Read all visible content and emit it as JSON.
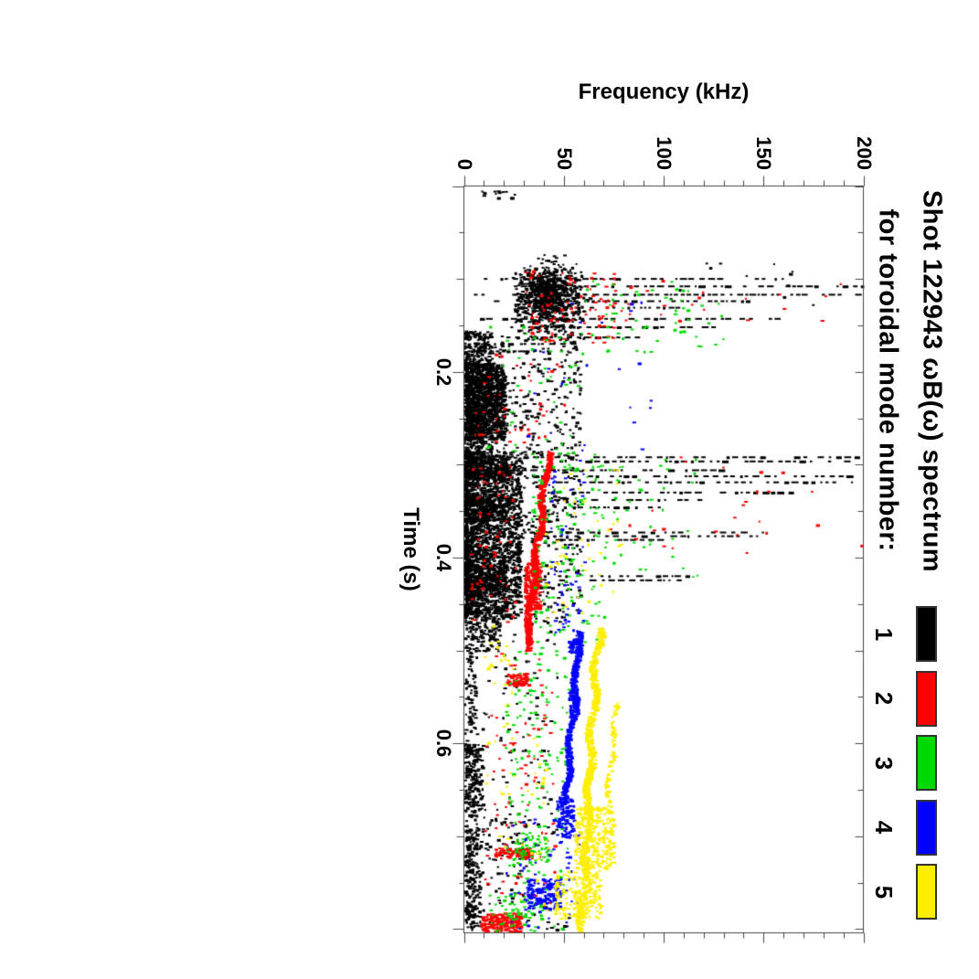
{
  "figure": {
    "background": "#ffffff"
  },
  "title": {
    "line1": "Shot 122943 ωB(ω) spectrum",
    "line2": "for toroidal mode number:"
  },
  "axes": {
    "freq": {
      "title": "Frequency (kHz)",
      "tick_labels": [
        "0",
        "50",
        "100",
        "150",
        "200"
      ],
      "tick_values": [
        0,
        50,
        100,
        150,
        200
      ],
      "minor_step": 10,
      "range": [
        0,
        200
      ]
    },
    "time": {
      "title": "Time (s)",
      "tick_labels": [
        "0.2",
        "0.4",
        "0.6"
      ],
      "tick_values": [
        0.2,
        0.4,
        0.6
      ],
      "minor_step": 0.05,
      "range": [
        0,
        0.804
      ]
    }
  },
  "legend": {
    "items": [
      {
        "label": "1",
        "color": "#000000"
      },
      {
        "label": "2",
        "color": "#ff0000"
      },
      {
        "label": "3",
        "color": "#00d900"
      },
      {
        "label": "4",
        "color": "#0000ff"
      },
      {
        "label": "5",
        "color": "#fdee00"
      }
    ]
  },
  "chart_data": {
    "type": "scatter",
    "title": "Shot 122943 ωB(ω) spectrum for toroidal mode number:",
    "xlabel": "Time (s)",
    "ylabel": "Frequency (kHz)",
    "xlim": [
      0,
      0.804
    ],
    "ylim": [
      0,
      200
    ],
    "orientation": "rotated_90_cw",
    "grid": false,
    "legend_position": "right",
    "series": [
      {
        "name": "n=1",
        "color": "#000000",
        "features": [
          {
            "kind": "cluster",
            "t": [
              0.004,
              0.012
            ],
            "f": [
              8,
              25
            ],
            "n": 14
          },
          {
            "kind": "gauss",
            "t0": 0.115,
            "f0": 42,
            "st": 0.016,
            "sf": 7,
            "n": 650
          },
          {
            "kind": "cluster",
            "t": [
              0.09,
              0.165
            ],
            "f": [
              25,
              60
            ],
            "n": 250
          },
          {
            "kind": "cluster",
            "t": [
              0.16,
              0.29
            ],
            "f": [
              5,
              58
            ],
            "n": 260
          },
          {
            "kind": "cluster",
            "t": [
              0.08,
              0.13
            ],
            "f": [
              100,
              180
            ],
            "n": 12
          },
          {
            "kind": "streak",
            "t": 0.1,
            "f": [
              10,
              160
            ]
          },
          {
            "kind": "streak",
            "t": 0.108,
            "f": [
              25,
              200
            ]
          },
          {
            "kind": "streak",
            "t": 0.117,
            "f": [
              5,
              200
            ]
          },
          {
            "kind": "streak",
            "t": 0.124,
            "f": [
              15,
              145
            ]
          },
          {
            "kind": "streak",
            "t": 0.131,
            "f": [
              40,
              110
            ]
          },
          {
            "kind": "streak",
            "t": 0.143,
            "f": [
              8,
              170
            ]
          },
          {
            "kind": "streak",
            "t": 0.152,
            "f": [
              20,
              130
            ]
          },
          {
            "kind": "streak",
            "t": 0.163,
            "f": [
              5,
              90
            ]
          },
          {
            "kind": "streak",
            "t": 0.17,
            "f": [
              5,
              60
            ]
          },
          {
            "kind": "streak",
            "t": 0.178,
            "f": [
              5,
              45
            ]
          },
          {
            "kind": "band",
            "t": [
              0.155,
              0.29
            ],
            "f": [
              0,
              14
            ],
            "n": 650,
            "bias": 1.4
          },
          {
            "kind": "cluster",
            "t": [
              0.19,
              0.272
            ],
            "f": [
              0,
              20
            ],
            "n": 900
          },
          {
            "kind": "band",
            "t": [
              0.285,
              0.465
            ],
            "f": [
              0,
              28
            ],
            "n": 2300,
            "bias": 1.6
          },
          {
            "kind": "cluster",
            "t": [
              0.29,
              0.315
            ],
            "f": [
              0,
              22
            ],
            "n": 260
          },
          {
            "kind": "cluster",
            "t": [
              0.33,
              0.36
            ],
            "f": [
              0,
              22
            ],
            "n": 240
          },
          {
            "kind": "cluster",
            "t": [
              0.4,
              0.44
            ],
            "f": [
              0,
              20
            ],
            "n": 240
          },
          {
            "kind": "cluster",
            "t": [
              0.285,
              0.47
            ],
            "f": [
              28,
              58
            ],
            "n": 230
          },
          {
            "kind": "streak",
            "t": 0.292,
            "f": [
              15,
              200
            ]
          },
          {
            "kind": "streak",
            "t": 0.2965,
            "f": [
              55,
              200
            ]
          },
          {
            "kind": "streak",
            "t": 0.306,
            "f": [
              20,
              130
            ]
          },
          {
            "kind": "streak",
            "t": 0.3125,
            "f": [
              30,
              200
            ]
          },
          {
            "kind": "streak",
            "t": 0.319,
            "f": [
              35,
              195
            ]
          },
          {
            "kind": "streak",
            "t": 0.33,
            "f": [
              40,
              165
            ]
          },
          {
            "kind": "streak",
            "t": 0.338,
            "f": [
              45,
              120
            ]
          },
          {
            "kind": "streak",
            "t": 0.346,
            "f": [
              50,
              100
            ]
          },
          {
            "kind": "streak",
            "t": 0.373,
            "f": [
              30,
              150
            ]
          },
          {
            "kind": "streak",
            "t": 0.377,
            "f": [
              35,
              148
            ]
          },
          {
            "kind": "streak",
            "t": 0.381,
            "f": [
              40,
              100
            ]
          },
          {
            "kind": "streak",
            "t": 0.42,
            "f": [
              40,
              120
            ]
          },
          {
            "kind": "streak",
            "t": 0.4245,
            "f": [
              45,
              115
            ]
          },
          {
            "kind": "cluster",
            "t": [
              0.465,
              0.5
            ],
            "f": [
              0,
              18
            ],
            "n": 130
          },
          {
            "kind": "band",
            "t": [
              0.5,
              0.8
            ],
            "f": [
              0,
              6
            ],
            "n": 260,
            "bias": 1.2
          },
          {
            "kind": "cluster",
            "t": [
              0.6,
              0.675
            ],
            "f": [
              0,
              9
            ],
            "n": 130
          },
          {
            "kind": "cluster",
            "t": [
              0.69,
              0.8
            ],
            "f": [
              0,
              8
            ],
            "n": 150
          },
          {
            "kind": "cluster",
            "t": [
              0.46,
              0.8
            ],
            "f": [
              5,
              48
            ],
            "n": 130
          },
          {
            "kind": "cluster",
            "t": [
              0.67,
              0.745
            ],
            "f": [
              8,
              32
            ],
            "n": 55
          },
          {
            "kind": "cluster",
            "t": [
              0.785,
              0.8
            ],
            "f": [
              40,
              52
            ],
            "n": 8
          }
        ]
      },
      {
        "name": "n=2",
        "color": "#ff0000",
        "features": [
          {
            "kind": "cluster",
            "t": [
              0.09,
              0.17
            ],
            "f": [
              30,
              75
            ],
            "n": 90
          },
          {
            "kind": "cluster",
            "t": [
              0.1,
              0.15
            ],
            "f": [
              75,
              190
            ],
            "n": 22
          },
          {
            "kind": "track",
            "pts": [
              [
                0.285,
                42
              ],
              [
                0.31,
                40.5
              ],
              [
                0.34,
                38.5
              ],
              [
                0.37,
                37
              ],
              [
                0.4,
                35.5
              ],
              [
                0.43,
                34
              ],
              [
                0.46,
                32.5
              ],
              [
                0.5,
                30.5
              ]
            ],
            "w": 2.5,
            "n": 750
          },
          {
            "kind": "cluster",
            "t": [
              0.405,
              0.455
            ],
            "f": [
              30,
              38
            ],
            "n": 160
          },
          {
            "kind": "cluster",
            "t": [
              0.524,
              0.537
            ],
            "f": [
              21,
              31
            ],
            "n": 70
          },
          {
            "kind": "cluster",
            "t": [
              0.3,
              0.47
            ],
            "f": [
              3,
              28
            ],
            "n": 60
          },
          {
            "kind": "cluster",
            "t": [
              0.5,
              0.79
            ],
            "f": [
              10,
              45
            ],
            "n": 90
          },
          {
            "kind": "cluster",
            "t": [
              0.28,
              0.4
            ],
            "f": [
              60,
              200
            ],
            "n": 26
          },
          {
            "kind": "cluster",
            "t": [
              0.712,
              0.723
            ],
            "f": [
              15,
              34
            ],
            "n": 85
          },
          {
            "kind": "cluster",
            "t": [
              0.782,
              0.802
            ],
            "f": [
              8,
              28
            ],
            "n": 210
          },
          {
            "kind": "cluster",
            "t": [
              0.16,
              0.28
            ],
            "f": [
              5,
              50
            ],
            "n": 45
          }
        ]
      },
      {
        "name": "n=3",
        "color": "#00d900",
        "features": [
          {
            "kind": "cluster",
            "t": [
              0.095,
              0.185
            ],
            "f": [
              55,
              130
            ],
            "n": 60
          },
          {
            "kind": "cluster",
            "t": [
              0.15,
              0.285
            ],
            "f": [
              10,
              60
            ],
            "n": 40
          },
          {
            "kind": "cluster",
            "t": [
              0.285,
              0.5
            ],
            "f": [
              33,
              70
            ],
            "n": 140
          },
          {
            "kind": "cluster",
            "t": [
              0.29,
              0.42
            ],
            "f": [
              70,
              120
            ],
            "n": 40
          },
          {
            "kind": "cluster",
            "t": [
              0.5,
              0.8
            ],
            "f": [
              20,
              52
            ],
            "n": 160
          },
          {
            "kind": "cluster",
            "t": [
              0.695,
              0.728
            ],
            "f": [
              24,
              42
            ],
            "n": 60
          },
          {
            "kind": "cluster",
            "t": [
              0.76,
              0.802
            ],
            "f": [
              10,
              38
            ],
            "n": 45
          }
        ]
      },
      {
        "name": "n=4",
        "color": "#0000ff",
        "features": [
          {
            "kind": "cluster",
            "t": [
              0.12,
              0.3
            ],
            "f": [
              30,
              95
            ],
            "n": 25
          },
          {
            "kind": "cluster",
            "t": [
              0.3,
              0.48
            ],
            "f": [
              42,
              60
            ],
            "n": 60
          },
          {
            "kind": "track",
            "pts": [
              [
                0.478,
                57
              ],
              [
                0.51,
                56
              ],
              [
                0.545,
                55
              ],
              [
                0.575,
                53.5
              ],
              [
                0.61,
                52
              ],
              [
                0.645,
                50.8
              ],
              [
                0.665,
                50
              ]
            ],
            "w": 2.5,
            "n": 500
          },
          {
            "kind": "cluster",
            "t": [
              0.487,
              0.503
            ],
            "f": [
              52,
              58
            ],
            "n": 60
          },
          {
            "kind": "cluster",
            "t": [
              0.54,
              0.572
            ],
            "f": [
              52,
              57
            ],
            "n": 70
          },
          {
            "kind": "cluster",
            "t": [
              0.657,
              0.7
            ],
            "f": [
              46,
              55
            ],
            "n": 110
          },
          {
            "kind": "cluster",
            "t": [
              0.745,
              0.778
            ],
            "f": [
              31,
              48
            ],
            "n": 170
          },
          {
            "kind": "cluster",
            "t": [
              0.68,
              0.8
            ],
            "f": [
              20,
              58
            ],
            "n": 60
          }
        ]
      },
      {
        "name": "n=5",
        "color": "#fdee00",
        "features": [
          {
            "kind": "track",
            "pts": [
              [
                0.475,
                67
              ],
              [
                0.51,
                65.5
              ],
              [
                0.55,
                64.5
              ],
              [
                0.59,
                63
              ],
              [
                0.63,
                62
              ],
              [
                0.67,
                61.5
              ],
              [
                0.71,
                61
              ],
              [
                0.75,
                60
              ],
              [
                0.78,
                59
              ],
              [
                0.802,
                57.5
              ]
            ],
            "w": 3,
            "n": 850
          },
          {
            "kind": "track",
            "pts": [
              [
                0.555,
                76
              ],
              [
                0.6,
                74
              ],
              [
                0.645,
                72
              ],
              [
                0.675,
                71
              ]
            ],
            "w": 2,
            "n": 90
          },
          {
            "kind": "cluster",
            "t": [
              0.668,
              0.735
            ],
            "f": [
              55,
              75
            ],
            "n": 280
          },
          {
            "kind": "cluster",
            "t": [
              0.735,
              0.788
            ],
            "f": [
              45,
              68
            ],
            "n": 190
          },
          {
            "kind": "cluster",
            "t": [
              0.3,
              0.475
            ],
            "f": [
              40,
              78
            ],
            "n": 45
          },
          {
            "kind": "cluster",
            "t": [
              0.47,
              0.56
            ],
            "f": [
              10,
              26
            ],
            "n": 22
          },
          {
            "kind": "cluster",
            "t": [
              0.56,
              0.8
            ],
            "f": [
              8,
              42
            ],
            "n": 40
          }
        ]
      }
    ]
  }
}
